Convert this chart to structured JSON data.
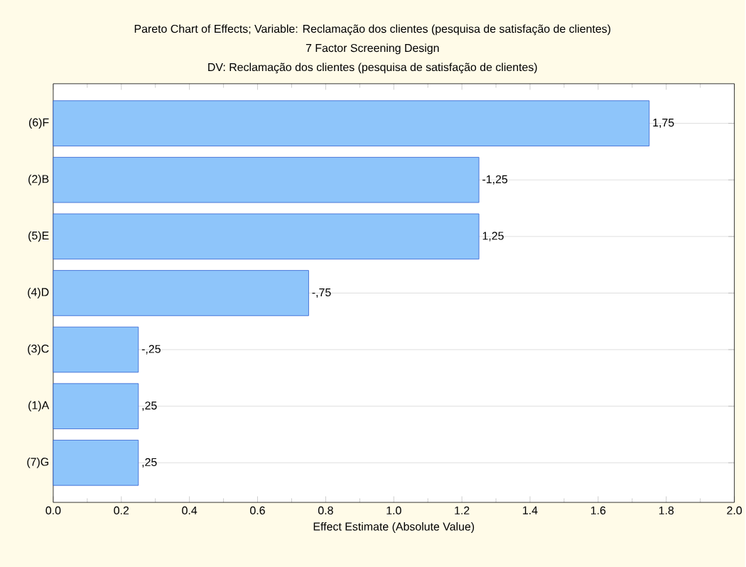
{
  "chart_data": {
    "type": "bar",
    "orientation": "horizontal",
    "title": "Pareto Chart of Effects; Variable: Reclamação dos clientes (pesquisa de satisfação de clientes)",
    "subtitle": "7 Factor Screening Design",
    "annotations": [
      "DV: Reclamação dos clientes (pesquisa de satisfação de clientes)",
      {
        "text": "1,75",
        "x": 1.75,
        "y": "(6)F"
      },
      {
        "text": "-1,25",
        "x": 1.25,
        "y": "(2)B"
      },
      {
        "text": "1,25",
        "x": 1.25,
        "y": "(5)E"
      },
      {
        "text": "-,75",
        "x": 0.75,
        "y": "(4)D"
      },
      {
        "text": "-,25",
        "x": 0.25,
        "y": "(3)C"
      },
      {
        "text": ",25",
        "x": 0.25,
        "y": "(1)A"
      },
      {
        "text": ",25",
        "x": 0.25,
        "y": "(7)G"
      }
    ],
    "xlabel": "Effect Estimate (Absolute Value)",
    "categories": [
      "(6)F",
      "(2)B",
      "(5)E",
      "(4)D",
      "(3)C",
      "(1)A",
      "(7)G"
    ],
    "values": [
      1.75,
      1.25,
      1.25,
      0.75,
      0.25,
      0.25,
      0.25
    ],
    "color": "#8ec5fa",
    "xlim": [
      0,
      2
    ],
    "xticks": [
      {
        "value": 0,
        "label": "0.0"
      },
      {
        "value": 0.2,
        "label": "0.2"
      },
      {
        "value": 0.4,
        "label": "0.4"
      },
      {
        "value": 0.6,
        "label": "0.6"
      },
      {
        "value": 0.8,
        "label": "0.8"
      },
      {
        "value": 1.0,
        "label": "1.0"
      },
      {
        "value": 1.2,
        "label": "1.2"
      },
      {
        "value": 1.4,
        "label": "1.4"
      },
      {
        "value": 1.6,
        "label": "1.6"
      },
      {
        "value": 1.8,
        "label": "1.8"
      },
      {
        "value": 2.0,
        "label": "2.0"
      }
    ],
    "grid": "y"
  }
}
